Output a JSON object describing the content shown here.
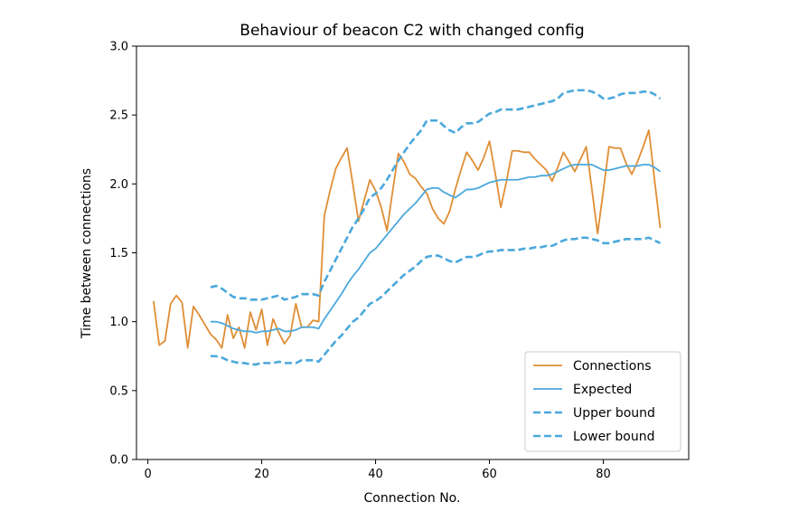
{
  "chart_data": {
    "type": "line",
    "title": "Behaviour of beacon C2 with changed config",
    "xlabel": "Connection No.",
    "ylabel": "Time between connections",
    "xlim": [
      -2,
      95
    ],
    "ylim": [
      0.0,
      3.0
    ],
    "xticks": [
      0,
      20,
      40,
      60,
      80
    ],
    "yticks": [
      0.0,
      0.5,
      1.0,
      1.5,
      2.0,
      2.5,
      3.0
    ],
    "ytick_labels": [
      "0.0",
      "0.5",
      "1.0",
      "1.5",
      "2.0",
      "2.5",
      "3.0"
    ],
    "grid": false,
    "legend_position": "lower-right",
    "colors": {
      "connections": "#e08e35",
      "expected": "#4aa8dc",
      "bounds": "#4aa8dc"
    },
    "series": [
      {
        "name": "Connections",
        "style": "solid",
        "x": [
          1,
          2,
          3,
          4,
          5,
          6,
          7,
          8,
          9,
          10,
          11,
          12,
          13,
          14,
          15,
          16,
          17,
          18,
          19,
          20,
          21,
          22,
          23,
          24,
          25,
          26,
          27,
          28,
          29,
          30,
          31,
          32,
          33,
          34,
          35,
          36,
          37,
          38,
          39,
          40,
          41,
          42,
          43,
          44,
          45,
          46,
          47,
          48,
          49,
          50,
          51,
          52,
          53,
          54,
          55,
          56,
          57,
          58,
          59,
          60,
          61,
          62,
          63,
          64,
          65,
          66,
          67,
          68,
          69,
          70,
          71,
          72,
          73,
          74,
          75,
          76,
          77,
          78,
          79,
          80,
          81,
          82,
          83,
          84,
          85,
          86,
          87,
          88,
          89,
          90
        ],
        "y": [
          1.15,
          0.83,
          0.86,
          1.13,
          1.19,
          1.14,
          0.81,
          1.11,
          1.05,
          0.98,
          0.91,
          0.87,
          0.81,
          1.05,
          0.88,
          0.96,
          0.81,
          1.07,
          0.94,
          1.09,
          0.83,
          1.02,
          0.92,
          0.84,
          0.9,
          1.13,
          0.96,
          0.96,
          1.01,
          1.0,
          1.77,
          1.95,
          2.11,
          2.19,
          2.26,
          2.0,
          1.73,
          1.88,
          2.03,
          1.95,
          1.83,
          1.66,
          1.95,
          2.22,
          2.16,
          2.07,
          2.04,
          1.98,
          1.93,
          1.82,
          1.75,
          1.71,
          1.8,
          1.96,
          2.1,
          2.23,
          2.17,
          2.1,
          2.19,
          2.31,
          2.08,
          1.83,
          2.02,
          2.24,
          2.24,
          2.23,
          2.23,
          2.18,
          2.14,
          2.1,
          2.02,
          2.12,
          2.23,
          2.16,
          2.09,
          2.18,
          2.27,
          1.96,
          1.64,
          1.95,
          2.27,
          2.26,
          2.26,
          2.15,
          2.07,
          2.16,
          2.27,
          2.39,
          2.03,
          1.68
        ]
      },
      {
        "name": "Expected",
        "style": "solid",
        "x": [
          11,
          12,
          13,
          14,
          15,
          16,
          17,
          18,
          19,
          20,
          21,
          22,
          23,
          24,
          25,
          26,
          27,
          28,
          29,
          30,
          31,
          32,
          33,
          34,
          35,
          36,
          37,
          38,
          39,
          40,
          41,
          42,
          43,
          44,
          45,
          46,
          47,
          48,
          49,
          50,
          51,
          52,
          53,
          54,
          55,
          56,
          57,
          58,
          59,
          60,
          61,
          62,
          63,
          64,
          65,
          66,
          67,
          68,
          69,
          70,
          71,
          72,
          73,
          74,
          75,
          76,
          77,
          78,
          79,
          80,
          81,
          82,
          83,
          84,
          85,
          86,
          87,
          88,
          89,
          90
        ],
        "y": [
          1.0,
          1.0,
          0.99,
          0.97,
          0.95,
          0.94,
          0.93,
          0.93,
          0.92,
          0.93,
          0.93,
          0.94,
          0.95,
          0.93,
          0.93,
          0.94,
          0.96,
          0.96,
          0.96,
          0.95,
          1.02,
          1.08,
          1.14,
          1.2,
          1.27,
          1.33,
          1.38,
          1.44,
          1.5,
          1.53,
          1.58,
          1.63,
          1.68,
          1.73,
          1.78,
          1.82,
          1.86,
          1.91,
          1.96,
          1.97,
          1.97,
          1.94,
          1.92,
          1.9,
          1.93,
          1.96,
          1.96,
          1.97,
          1.99,
          2.01,
          2.02,
          2.03,
          2.03,
          2.03,
          2.03,
          2.04,
          2.05,
          2.05,
          2.06,
          2.06,
          2.07,
          2.09,
          2.11,
          2.13,
          2.14,
          2.14,
          2.14,
          2.14,
          2.12,
          2.1,
          2.1,
          2.11,
          2.12,
          2.13,
          2.13,
          2.13,
          2.14,
          2.14,
          2.12,
          2.09
        ]
      },
      {
        "name": "Upper bound",
        "style": "dashed",
        "x": [
          11,
          12,
          13,
          14,
          15,
          16,
          17,
          18,
          19,
          20,
          21,
          22,
          23,
          24,
          25,
          26,
          27,
          28,
          29,
          30,
          31,
          32,
          33,
          34,
          35,
          36,
          37,
          38,
          39,
          40,
          41,
          42,
          43,
          44,
          45,
          46,
          47,
          48,
          49,
          50,
          51,
          52,
          53,
          54,
          55,
          56,
          57,
          58,
          59,
          60,
          61,
          62,
          63,
          64,
          65,
          66,
          67,
          68,
          69,
          70,
          71,
          72,
          73,
          74,
          75,
          76,
          77,
          78,
          79,
          80,
          81,
          82,
          83,
          84,
          85,
          86,
          87,
          88,
          89,
          90
        ],
        "y": [
          1.25,
          1.26,
          1.24,
          1.21,
          1.18,
          1.17,
          1.17,
          1.16,
          1.16,
          1.16,
          1.17,
          1.18,
          1.19,
          1.16,
          1.17,
          1.18,
          1.2,
          1.2,
          1.2,
          1.19,
          1.29,
          1.37,
          1.45,
          1.53,
          1.61,
          1.69,
          1.75,
          1.82,
          1.9,
          1.93,
          1.97,
          2.03,
          2.1,
          2.17,
          2.23,
          2.29,
          2.34,
          2.39,
          2.46,
          2.46,
          2.46,
          2.42,
          2.39,
          2.37,
          2.41,
          2.44,
          2.44,
          2.45,
          2.48,
          2.51,
          2.52,
          2.54,
          2.54,
          2.54,
          2.54,
          2.55,
          2.56,
          2.57,
          2.58,
          2.59,
          2.6,
          2.62,
          2.66,
          2.67,
          2.68,
          2.68,
          2.68,
          2.67,
          2.65,
          2.62,
          2.62,
          2.63,
          2.65,
          2.66,
          2.66,
          2.66,
          2.67,
          2.67,
          2.65,
          2.62
        ]
      },
      {
        "name": "Lower bound",
        "style": "dashed",
        "x": [
          11,
          12,
          13,
          14,
          15,
          16,
          17,
          18,
          19,
          20,
          21,
          22,
          23,
          24,
          25,
          26,
          27,
          28,
          29,
          30,
          31,
          32,
          33,
          34,
          35,
          36,
          37,
          38,
          39,
          40,
          41,
          42,
          43,
          44,
          45,
          46,
          47,
          48,
          49,
          50,
          51,
          52,
          53,
          54,
          55,
          56,
          57,
          58,
          59,
          60,
          61,
          62,
          63,
          64,
          65,
          66,
          67,
          68,
          69,
          70,
          71,
          72,
          73,
          74,
          75,
          76,
          77,
          78,
          79,
          80,
          81,
          82,
          83,
          84,
          85,
          86,
          87,
          88,
          89,
          90
        ],
        "y": [
          0.75,
          0.75,
          0.74,
          0.72,
          0.71,
          0.7,
          0.7,
          0.69,
          0.69,
          0.7,
          0.7,
          0.7,
          0.71,
          0.7,
          0.7,
          0.7,
          0.72,
          0.72,
          0.72,
          0.71,
          0.76,
          0.81,
          0.86,
          0.9,
          0.95,
          1.0,
          1.03,
          1.08,
          1.13,
          1.15,
          1.18,
          1.22,
          1.26,
          1.3,
          1.34,
          1.37,
          1.4,
          1.44,
          1.47,
          1.48,
          1.48,
          1.46,
          1.44,
          1.43,
          1.45,
          1.47,
          1.47,
          1.48,
          1.5,
          1.51,
          1.51,
          1.52,
          1.52,
          1.52,
          1.52,
          1.53,
          1.53,
          1.54,
          1.54,
          1.55,
          1.55,
          1.57,
          1.59,
          1.6,
          1.6,
          1.61,
          1.61,
          1.6,
          1.59,
          1.57,
          1.57,
          1.58,
          1.59,
          1.6,
          1.6,
          1.6,
          1.6,
          1.61,
          1.59,
          1.57
        ]
      }
    ]
  }
}
